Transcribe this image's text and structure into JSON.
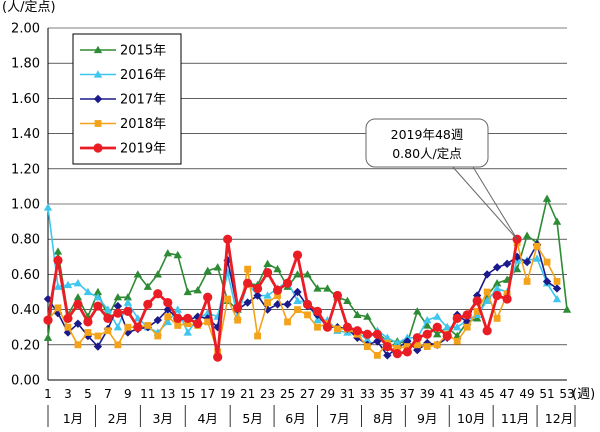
{
  "chart_data": {
    "type": "line",
    "y_unit_label": "(人/定点)",
    "x_unit_label": "(週)",
    "ylim": [
      0,
      2.0
    ],
    "yticks": [
      "0.00",
      "0.20",
      "0.40",
      "0.60",
      "0.80",
      "1.00",
      "1.20",
      "1.40",
      "1.60",
      "1.80",
      "2.00"
    ],
    "xticks": [
      1,
      3,
      5,
      7,
      9,
      11,
      13,
      15,
      17,
      19,
      21,
      23,
      25,
      27,
      29,
      31,
      33,
      35,
      37,
      39,
      41,
      43,
      45,
      47,
      49,
      51,
      53
    ],
    "xlim": [
      1,
      53
    ],
    "months": [
      {
        "label": "1月",
        "week": 3.5
      },
      {
        "label": "2月",
        "week": 8
      },
      {
        "label": "3月",
        "week": 12.5
      },
      {
        "label": "4月",
        "week": 17
      },
      {
        "label": "5月",
        "week": 21.5
      },
      {
        "label": "6月",
        "week": 25.8
      },
      {
        "label": "7月",
        "week": 30.2
      },
      {
        "label": "8月",
        "week": 34.6
      },
      {
        "label": "9月",
        "week": 39
      },
      {
        "label": "10月",
        "week": 43.4
      },
      {
        "label": "11月",
        "week": 47.8
      },
      {
        "label": "12月",
        "week": 52.2
      }
    ],
    "series": [
      {
        "name": "2015年",
        "color": "#2e8b35",
        "marker": "triangle",
        "width": 1.6,
        "values": [
          0.24,
          0.73,
          0.37,
          0.47,
          0.36,
          0.5,
          0.36,
          0.47,
          0.47,
          0.6,
          0.53,
          0.6,
          0.72,
          0.71,
          0.5,
          0.51,
          0.62,
          0.64,
          0.45,
          0.4,
          0.55,
          0.54,
          0.66,
          0.63,
          0.53,
          0.6,
          0.6,
          0.52,
          0.52,
          0.47,
          0.45,
          0.37,
          0.36,
          0.27,
          0.22,
          0.22,
          0.21,
          0.39,
          0.31,
          0.26,
          0.3,
          0.25,
          0.33,
          0.35,
          0.48,
          0.55,
          0.57,
          0.63,
          0.82,
          0.78,
          1.03,
          0.9,
          0.4
        ]
      },
      {
        "name": "2016年",
        "color": "#3ec6ee",
        "marker": "triangle",
        "width": 1.6,
        "values": [
          0.98,
          0.53,
          0.54,
          0.55,
          0.5,
          0.47,
          0.4,
          0.3,
          0.44,
          0.35,
          0.3,
          0.27,
          0.33,
          0.4,
          0.27,
          0.35,
          0.38,
          0.36,
          0.61,
          0.36,
          0.55,
          0.48,
          0.48,
          0.52,
          0.56,
          0.45,
          0.44,
          0.34,
          0.34,
          0.28,
          0.27,
          0.27,
          0.23,
          0.28,
          0.24,
          0.21,
          0.24,
          0.24,
          0.34,
          0.36,
          0.3,
          0.3,
          0.34,
          0.37,
          0.45,
          0.52,
          0.5,
          0.68,
          0.68,
          0.69,
          0.55,
          0.46,
          null
        ]
      },
      {
        "name": "2017年",
        "color": "#1a1a8c",
        "marker": "diamond",
        "width": 1.6,
        "values": [
          0.46,
          0.38,
          0.27,
          0.32,
          0.25,
          0.19,
          0.29,
          0.42,
          0.27,
          0.29,
          0.3,
          0.34,
          0.4,
          0.35,
          0.34,
          0.36,
          0.35,
          0.3,
          0.68,
          0.4,
          0.44,
          0.48,
          0.4,
          0.43,
          0.43,
          0.5,
          0.42,
          0.37,
          0.3,
          0.3,
          0.29,
          0.24,
          0.2,
          0.22,
          0.14,
          0.18,
          0.22,
          0.17,
          0.21,
          0.2,
          0.24,
          0.37,
          0.33,
          0.48,
          0.6,
          0.64,
          0.66,
          0.7,
          0.67,
          0.77,
          0.56,
          0.52,
          null
        ]
      },
      {
        "name": "2018年",
        "color": "#f3a21a",
        "marker": "square",
        "width": 1.6,
        "values": [
          0.34,
          0.41,
          0.3,
          0.2,
          0.27,
          0.25,
          0.28,
          0.2,
          0.3,
          0.3,
          0.31,
          0.25,
          0.36,
          0.31,
          0.32,
          0.31,
          0.33,
          0.16,
          0.46,
          0.34,
          0.63,
          0.25,
          0.44,
          0.48,
          0.33,
          0.4,
          0.37,
          0.3,
          0.32,
          0.29,
          0.29,
          0.26,
          0.19,
          0.14,
          0.21,
          0.18,
          0.19,
          0.2,
          0.19,
          0.2,
          0.26,
          0.22,
          0.3,
          0.39,
          0.5,
          0.35,
          0.49,
          0.78,
          0.56,
          0.76,
          0.67,
          0.56,
          null
        ]
      },
      {
        "name": "2019年",
        "color": "#ea1c24",
        "marker": "circle",
        "width": 2.8,
        "values": [
          0.34,
          0.68,
          0.35,
          0.43,
          0.33,
          0.42,
          0.35,
          0.38,
          0.39,
          0.3,
          0.43,
          0.49,
          0.44,
          0.35,
          0.35,
          0.32,
          0.47,
          0.13,
          0.8,
          0.41,
          0.55,
          0.52,
          0.61,
          0.51,
          0.55,
          0.71,
          0.43,
          0.39,
          0.3,
          0.48,
          0.3,
          0.28,
          0.26,
          0.26,
          0.19,
          0.15,
          0.16,
          0.24,
          0.26,
          0.3,
          0.25,
          0.35,
          0.37,
          0.45,
          0.28,
          0.48,
          0.46,
          0.8,
          null,
          null,
          null,
          null,
          null
        ]
      }
    ],
    "annotation": {
      "line1": "2019年48週",
      "line2": "0.80人/定点",
      "week": 48,
      "value": 0.8
    },
    "legend_position": "top-left",
    "grid": "horizontal"
  }
}
